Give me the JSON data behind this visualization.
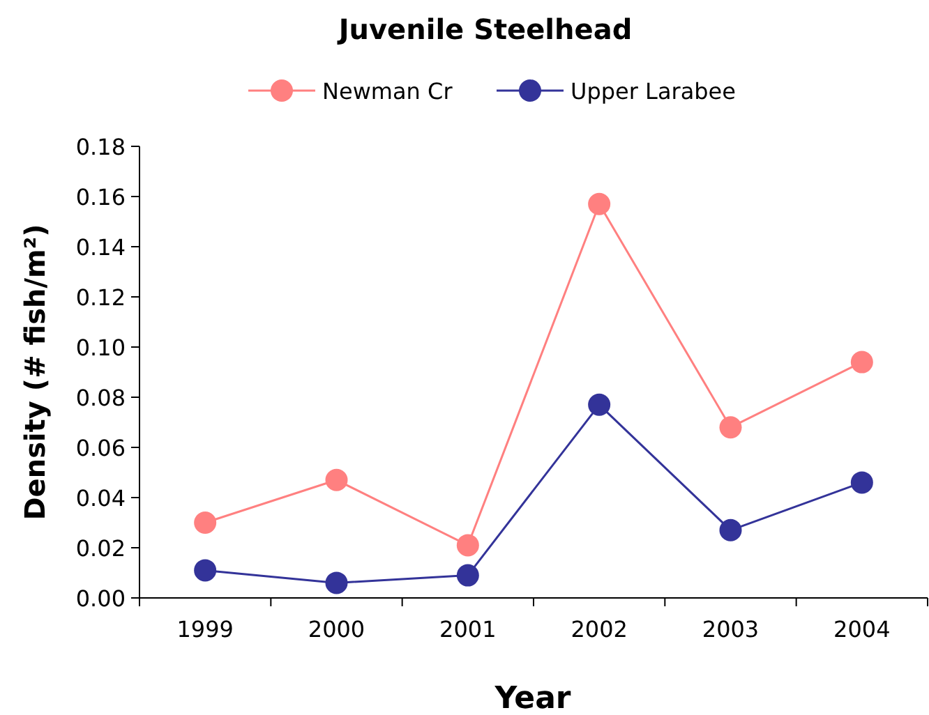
{
  "chart_data": {
    "type": "line",
    "title": "Juvenile Steelhead",
    "xlabel": "Year",
    "ylabel": "Density (# fish/m²)",
    "categories": [
      "1999",
      "2000",
      "2001",
      "2002",
      "2003",
      "2004"
    ],
    "series": [
      {
        "name": "Newman Cr",
        "color": "#ff8080",
        "values": [
          0.03,
          0.047,
          0.021,
          0.157,
          0.068,
          0.094
        ]
      },
      {
        "name": "Upper Larabee",
        "color": "#333399",
        "values": [
          0.011,
          0.006,
          0.009,
          0.077,
          0.027,
          0.046
        ]
      }
    ],
    "ylim": [
      0,
      0.18
    ],
    "yticks": [
      {
        "value": 0,
        "label": "0.00"
      },
      {
        "value": 0.02,
        "label": "0.02"
      },
      {
        "value": 0.04,
        "label": "0.04"
      },
      {
        "value": 0.06,
        "label": "0.06"
      },
      {
        "value": 0.08,
        "label": "0.08"
      },
      {
        "value": 0.1,
        "label": "0.10"
      },
      {
        "value": 0.12,
        "label": "0.12"
      },
      {
        "value": 0.14,
        "label": "0.14"
      },
      {
        "value": 0.16,
        "label": "0.16"
      },
      {
        "value": 0.18,
        "label": "0.18"
      }
    ],
    "legend": "top",
    "marker": "circle",
    "grid": false
  }
}
